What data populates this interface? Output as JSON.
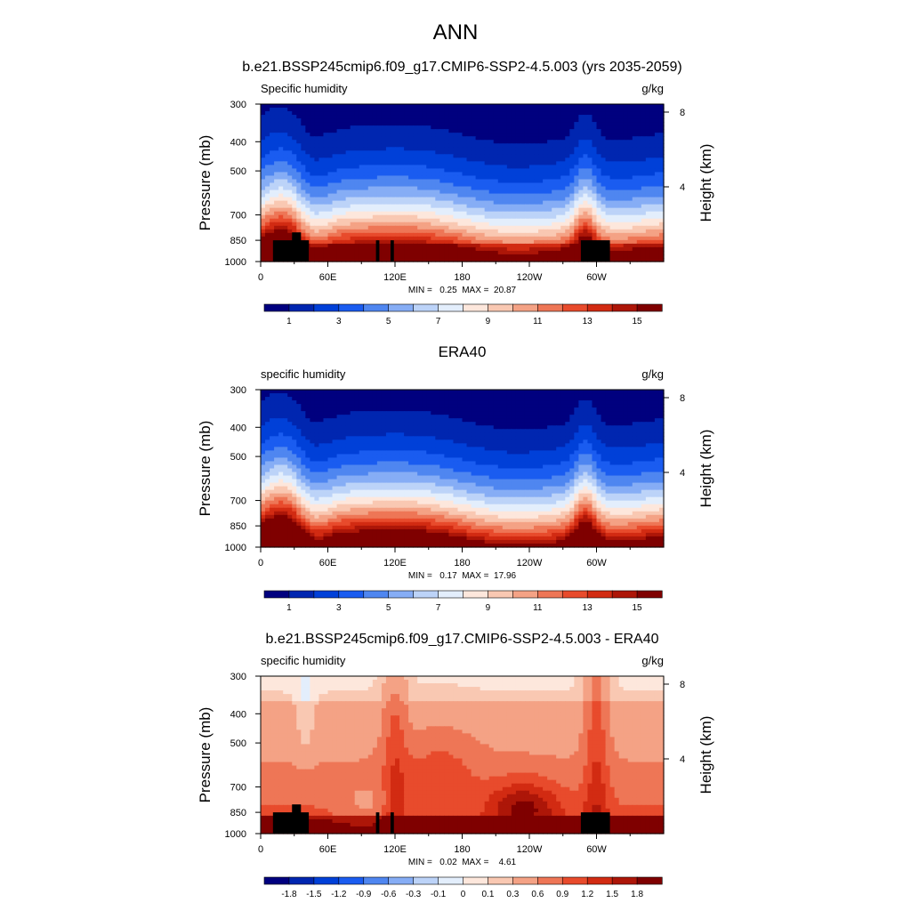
{
  "figure": {
    "title": "ANN"
  },
  "colorbars": {
    "abs": {
      "colors": [
        "#00007f",
        "#0026b0",
        "#0040d8",
        "#1a5cf0",
        "#4f86f0",
        "#86adf5",
        "#bcd3f8",
        "#e3eefc",
        "#fde7dc",
        "#f9c8b2",
        "#f4a285",
        "#ee7656",
        "#e84b2c",
        "#d22b12",
        "#ad1608",
        "#7f0000"
      ],
      "labels": [
        "1",
        "3",
        "5",
        "7",
        "9",
        "11",
        "13",
        "15"
      ]
    },
    "diff": {
      "colors": [
        "#00007f",
        "#0026b0",
        "#0040d8",
        "#1a5cf0",
        "#4f86f0",
        "#86adf5",
        "#bcd3f8",
        "#e3eefc",
        "#fde7dc",
        "#f9c8b2",
        "#f4a285",
        "#ee7656",
        "#e84b2c",
        "#d22b12",
        "#ad1608",
        "#7f0000"
      ],
      "labels": [
        "-1.8",
        "-1.5",
        "-1.2",
        "-0.9",
        "-0.6",
        "-0.3",
        "-0.1",
        "0",
        "0.1",
        "0.3",
        "0.6",
        "0.9",
        "1.2",
        "1.5",
        "1.8"
      ]
    }
  },
  "chart_data": [
    {
      "type": "heatmap",
      "id": "panel1",
      "title": "b.e21.BSSP245cmip6.f09_g17.CMIP6-SSP2-4.5.003 (yrs 2035-2059)",
      "left_label": "Specific humidity",
      "right_label": "g/kg",
      "ylabel": "Pressure (mb)",
      "y2label": "Height (km)",
      "xticks": [
        "0",
        "60E",
        "120E",
        "180",
        "120W",
        "60W"
      ],
      "xtick_lon": [
        0,
        60,
        120,
        180,
        240,
        300
      ],
      "xlim": [
        0,
        360
      ],
      "yticks": [
        "300",
        "400",
        "500",
        "700",
        "850",
        "1000"
      ],
      "ytick_p": [
        300,
        400,
        500,
        700,
        850,
        1000
      ],
      "ylim": [
        1000,
        300
      ],
      "y2ticks": [
        "8",
        "4"
      ],
      "y2tick_km": [
        8,
        4
      ],
      "minmax": "MIN =   0.25  MAX =  20.87",
      "min": 0.25,
      "max": 20.87,
      "colorbar": "abs",
      "land_blocks": [
        [
          11,
          43,
          850
        ],
        [
          28,
          36,
          800
        ],
        [
          103,
          106,
          850
        ],
        [
          116,
          119,
          850
        ],
        [
          286,
          312,
          850
        ]
      ]
    },
    {
      "type": "heatmap",
      "id": "panel2",
      "title": "ERA40",
      "left_label": "specific humidity",
      "right_label": "g/kg",
      "ylabel": "Pressure (mb)",
      "y2label": "Height (km)",
      "xticks": [
        "0",
        "60E",
        "120E",
        "180",
        "120W",
        "60W"
      ],
      "xtick_lon": [
        0,
        60,
        120,
        180,
        240,
        300
      ],
      "xlim": [
        0,
        360
      ],
      "yticks": [
        "300",
        "400",
        "500",
        "700",
        "850",
        "1000"
      ],
      "ytick_p": [
        300,
        400,
        500,
        700,
        850,
        1000
      ],
      "ylim": [
        1000,
        300
      ],
      "y2ticks": [
        "8",
        "4"
      ],
      "y2tick_km": [
        8,
        4
      ],
      "minmax": "MIN =   0.17  MAX =  17.96",
      "min": 0.17,
      "max": 17.96,
      "colorbar": "abs",
      "land_blocks": []
    },
    {
      "type": "heatmap",
      "id": "panel3",
      "title": "b.e21.BSSP245cmip6.f09_g17.CMIP6-SSP2-4.5.003 - ERA40",
      "left_label": "specific humidity",
      "right_label": "g/kg",
      "ylabel": "Pressure (mb)",
      "y2label": "Height (km)",
      "xticks": [
        "0",
        "60E",
        "120E",
        "180",
        "120W",
        "60W"
      ],
      "xtick_lon": [
        0,
        60,
        120,
        180,
        240,
        300
      ],
      "xlim": [
        0,
        360
      ],
      "yticks": [
        "300",
        "400",
        "500",
        "700",
        "850",
        "1000"
      ],
      "ytick_p": [
        300,
        400,
        500,
        700,
        850,
        1000
      ],
      "ylim": [
        1000,
        300
      ],
      "y2ticks": [
        "8",
        "4"
      ],
      "y2tick_km": [
        8,
        4
      ],
      "minmax": "MIN =   0.02  MAX =    4.61",
      "min": 0.02,
      "max": 4.61,
      "colorbar": "diff",
      "land_blocks": [
        [
          11,
          43,
          850
        ],
        [
          28,
          36,
          800
        ],
        [
          103,
          106,
          850
        ],
        [
          116,
          119,
          850
        ],
        [
          286,
          312,
          850
        ]
      ]
    }
  ]
}
